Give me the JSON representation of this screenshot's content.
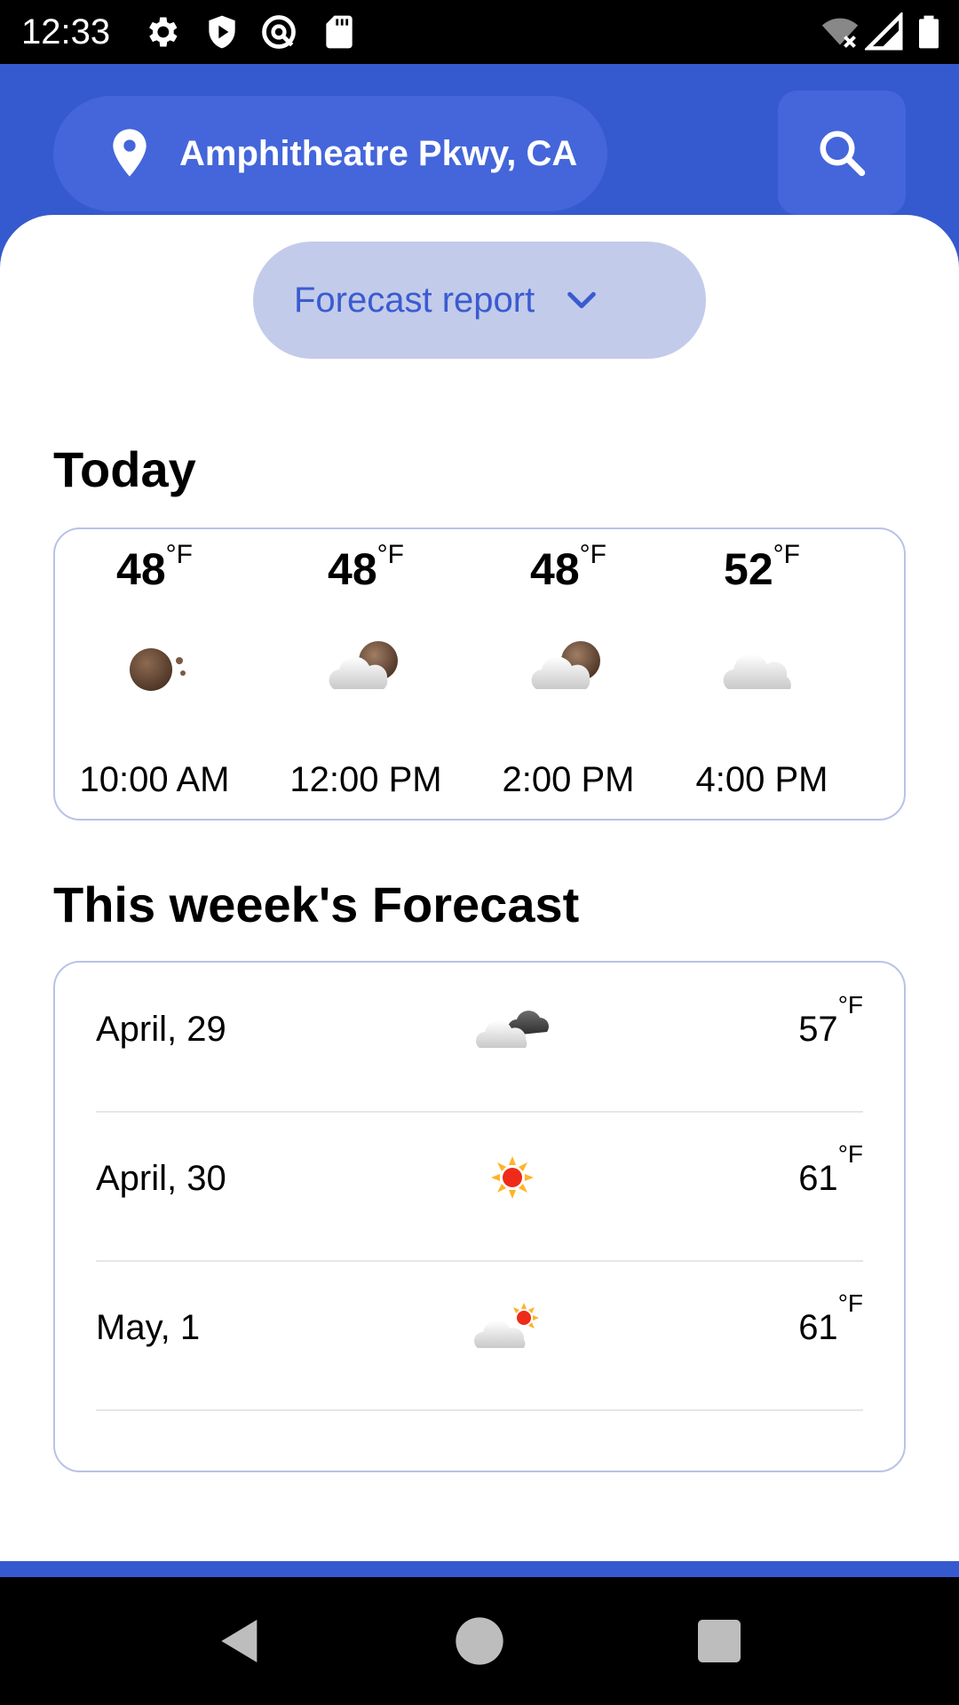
{
  "status_bar": {
    "time": "12:33",
    "left_icons": [
      "settings-icon",
      "shield-icon",
      "at-sign-icon",
      "sd-card-icon"
    ],
    "right_icons": [
      "wifi-off-icon",
      "signal-icon",
      "battery-icon"
    ]
  },
  "header": {
    "location": "Amphitheatre Pkwy, CA",
    "location_icon": "location-pin-icon",
    "search_icon": "search-icon"
  },
  "dropdown": {
    "label": "Forecast report",
    "icon": "chevron-down-icon"
  },
  "today": {
    "title": "Today",
    "unit": "°F",
    "hours": [
      {
        "temp": "48",
        "icon": "night-partly-clear-icon",
        "time": "10:00 AM"
      },
      {
        "temp": "48",
        "icon": "cloudy-night-icon",
        "time": "12:00 PM"
      },
      {
        "temp": "48",
        "icon": "cloudy-night-icon",
        "time": "2:00 PM"
      },
      {
        "temp": "52",
        "icon": "cloud-icon",
        "time": "4:00 PM"
      }
    ]
  },
  "week": {
    "title": "This weeek's Forecast",
    "unit": "°F",
    "days": [
      {
        "date": "April, 29",
        "icon": "cloudy-icon",
        "temp": "57"
      },
      {
        "date": "April, 30",
        "icon": "sun-icon",
        "temp": "61"
      },
      {
        "date": "May, 1",
        "icon": "partly-sunny-icon",
        "temp": "61"
      }
    ]
  },
  "colors": {
    "primary": "#3559cf",
    "pill": "#4466da",
    "dropdown_bg": "#c3cbea",
    "dropdown_text": "#3a5bd0",
    "card_border": "#b9c2e6"
  },
  "nav": {
    "back_icon": "back-icon",
    "home_icon": "home-icon",
    "recents_icon": "recents-icon"
  }
}
